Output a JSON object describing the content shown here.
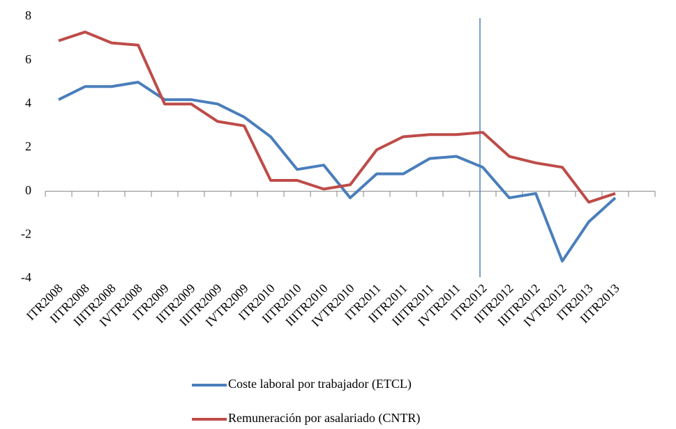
{
  "chart_data": {
    "type": "line",
    "categories": [
      "ITR2008",
      "IITR2008",
      "IIITR2008",
      "IVTR2008",
      "ITR2009",
      "IITR2009",
      "IIITR2009",
      "IVTR2009",
      "ITR2010",
      "IITR2010",
      "IIITR2010",
      "IVTR2010",
      "ITR2011",
      "IITR2011",
      "IIITR2011",
      "IVTR2011",
      "ITR2012",
      "IITR2012",
      "IIITR2012",
      "IVTR2012",
      "ITR2013",
      "IITR2013",
      null
    ],
    "series": [
      {
        "name": "Coste laboral por trabajador (ETCL)",
        "color": "#4a7ebb",
        "values": [
          4.2,
          4.8,
          4.8,
          5.0,
          4.2,
          4.2,
          4.0,
          3.4,
          2.5,
          1.0,
          1.2,
          -0.3,
          0.8,
          0.8,
          1.5,
          1.6,
          1.1,
          -0.3,
          -0.1,
          -3.2,
          -1.4,
          -0.3,
          null
        ]
      },
      {
        "name": "Remuneración por asalariado (CNTR)",
        "color": "#be4b48",
        "values": [
          6.9,
          7.3,
          6.8,
          6.7,
          4.0,
          4.0,
          3.2,
          3.0,
          0.5,
          0.5,
          0.1,
          0.3,
          1.9,
          2.5,
          2.6,
          2.6,
          2.7,
          1.6,
          1.3,
          1.1,
          -0.5,
          -0.1,
          null
        ]
      }
    ],
    "ylim": [
      -4,
      8
    ],
    "yticks": [
      -4,
      -2,
      0,
      2,
      4,
      6,
      8
    ],
    "grid": false,
    "legend": "bottom"
  }
}
